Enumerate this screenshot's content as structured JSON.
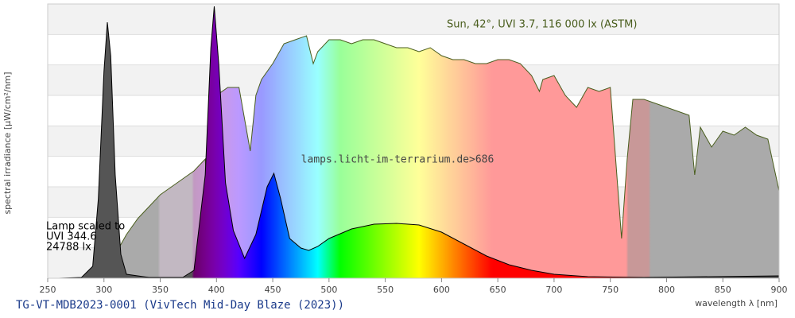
{
  "chart_data": {
    "type": "line",
    "title": "TG-VT-MDB2023-0001 (VivTech Mid-Day Blaze (2023))",
    "x_label": "wavelength λ [nm]",
    "y_label": "spectral irradiance [µW/cm²/nm]",
    "watermark": "lamps.licht-im-terrarium.de>686",
    "lamp_note": [
      "Lamp scaled to",
      "UVI 344.6",
      "24788 lx"
    ],
    "xlim": [
      250,
      900
    ],
    "xticks": [
      250,
      300,
      350,
      400,
      450,
      500,
      550,
      600,
      650,
      700,
      750,
      800,
      850,
      900
    ],
    "ylim": [
      0,
      345
    ],
    "grid": true,
    "series": [
      {
        "name": "Sun, 42°, UVI 3.7, 116 000 lx (ASTM)",
        "color": "#4a5e1e",
        "x": [
          290,
          300,
          310,
          320,
          330,
          340,
          350,
          360,
          370,
          380,
          390,
          393,
          396,
          400,
          410,
          420,
          430,
          435,
          440,
          450,
          460,
          470,
          480,
          486,
          490,
          500,
          510,
          520,
          530,
          540,
          550,
          560,
          570,
          580,
          590,
          600,
          610,
          620,
          630,
          640,
          650,
          660,
          670,
          680,
          687,
          690,
          700,
          710,
          720,
          730,
          740,
          750,
          760,
          765,
          770,
          780,
          790,
          800,
          810,
          820,
          825,
          830,
          840,
          850,
          860,
          870,
          880,
          890,
          900
        ],
        "values": [
          0,
          5,
          30,
          55,
          75,
          90,
          105,
          115,
          125,
          135,
          150,
          80,
          150,
          230,
          240,
          240,
          160,
          230,
          250,
          270,
          295,
          300,
          305,
          270,
          285,
          300,
          300,
          295,
          300,
          300,
          295,
          290,
          290,
          285,
          290,
          280,
          275,
          275,
          270,
          270,
          275,
          275,
          270,
          255,
          235,
          250,
          255,
          230,
          215,
          240,
          235,
          240,
          50,
          150,
          225,
          225,
          220,
          215,
          210,
          205,
          130,
          190,
          165,
          185,
          180,
          190,
          180,
          175,
          110
        ]
      },
      {
        "color": "#000000",
        "x": [
          260,
          280,
          290,
          295,
          300,
          303,
          306,
          310,
          315,
          320,
          340,
          370,
          380,
          390,
          395,
          398,
          402,
          408,
          415,
          425,
          435,
          445,
          451,
          457,
          465,
          475,
          482,
          490,
          500,
          520,
          540,
          560,
          580,
          600,
          620,
          640,
          660,
          680,
          700,
          730,
          780,
          900
        ],
        "values": [
          0,
          1,
          15,
          100,
          260,
          322,
          280,
          130,
          30,
          5,
          1,
          1,
          10,
          130,
          290,
          342,
          270,
          120,
          60,
          25,
          55,
          115,
          132,
          100,
          50,
          38,
          35,
          40,
          50,
          62,
          68,
          69,
          67,
          58,
          43,
          28,
          17,
          10,
          5,
          2,
          1,
          3
        ]
      }
    ]
  }
}
